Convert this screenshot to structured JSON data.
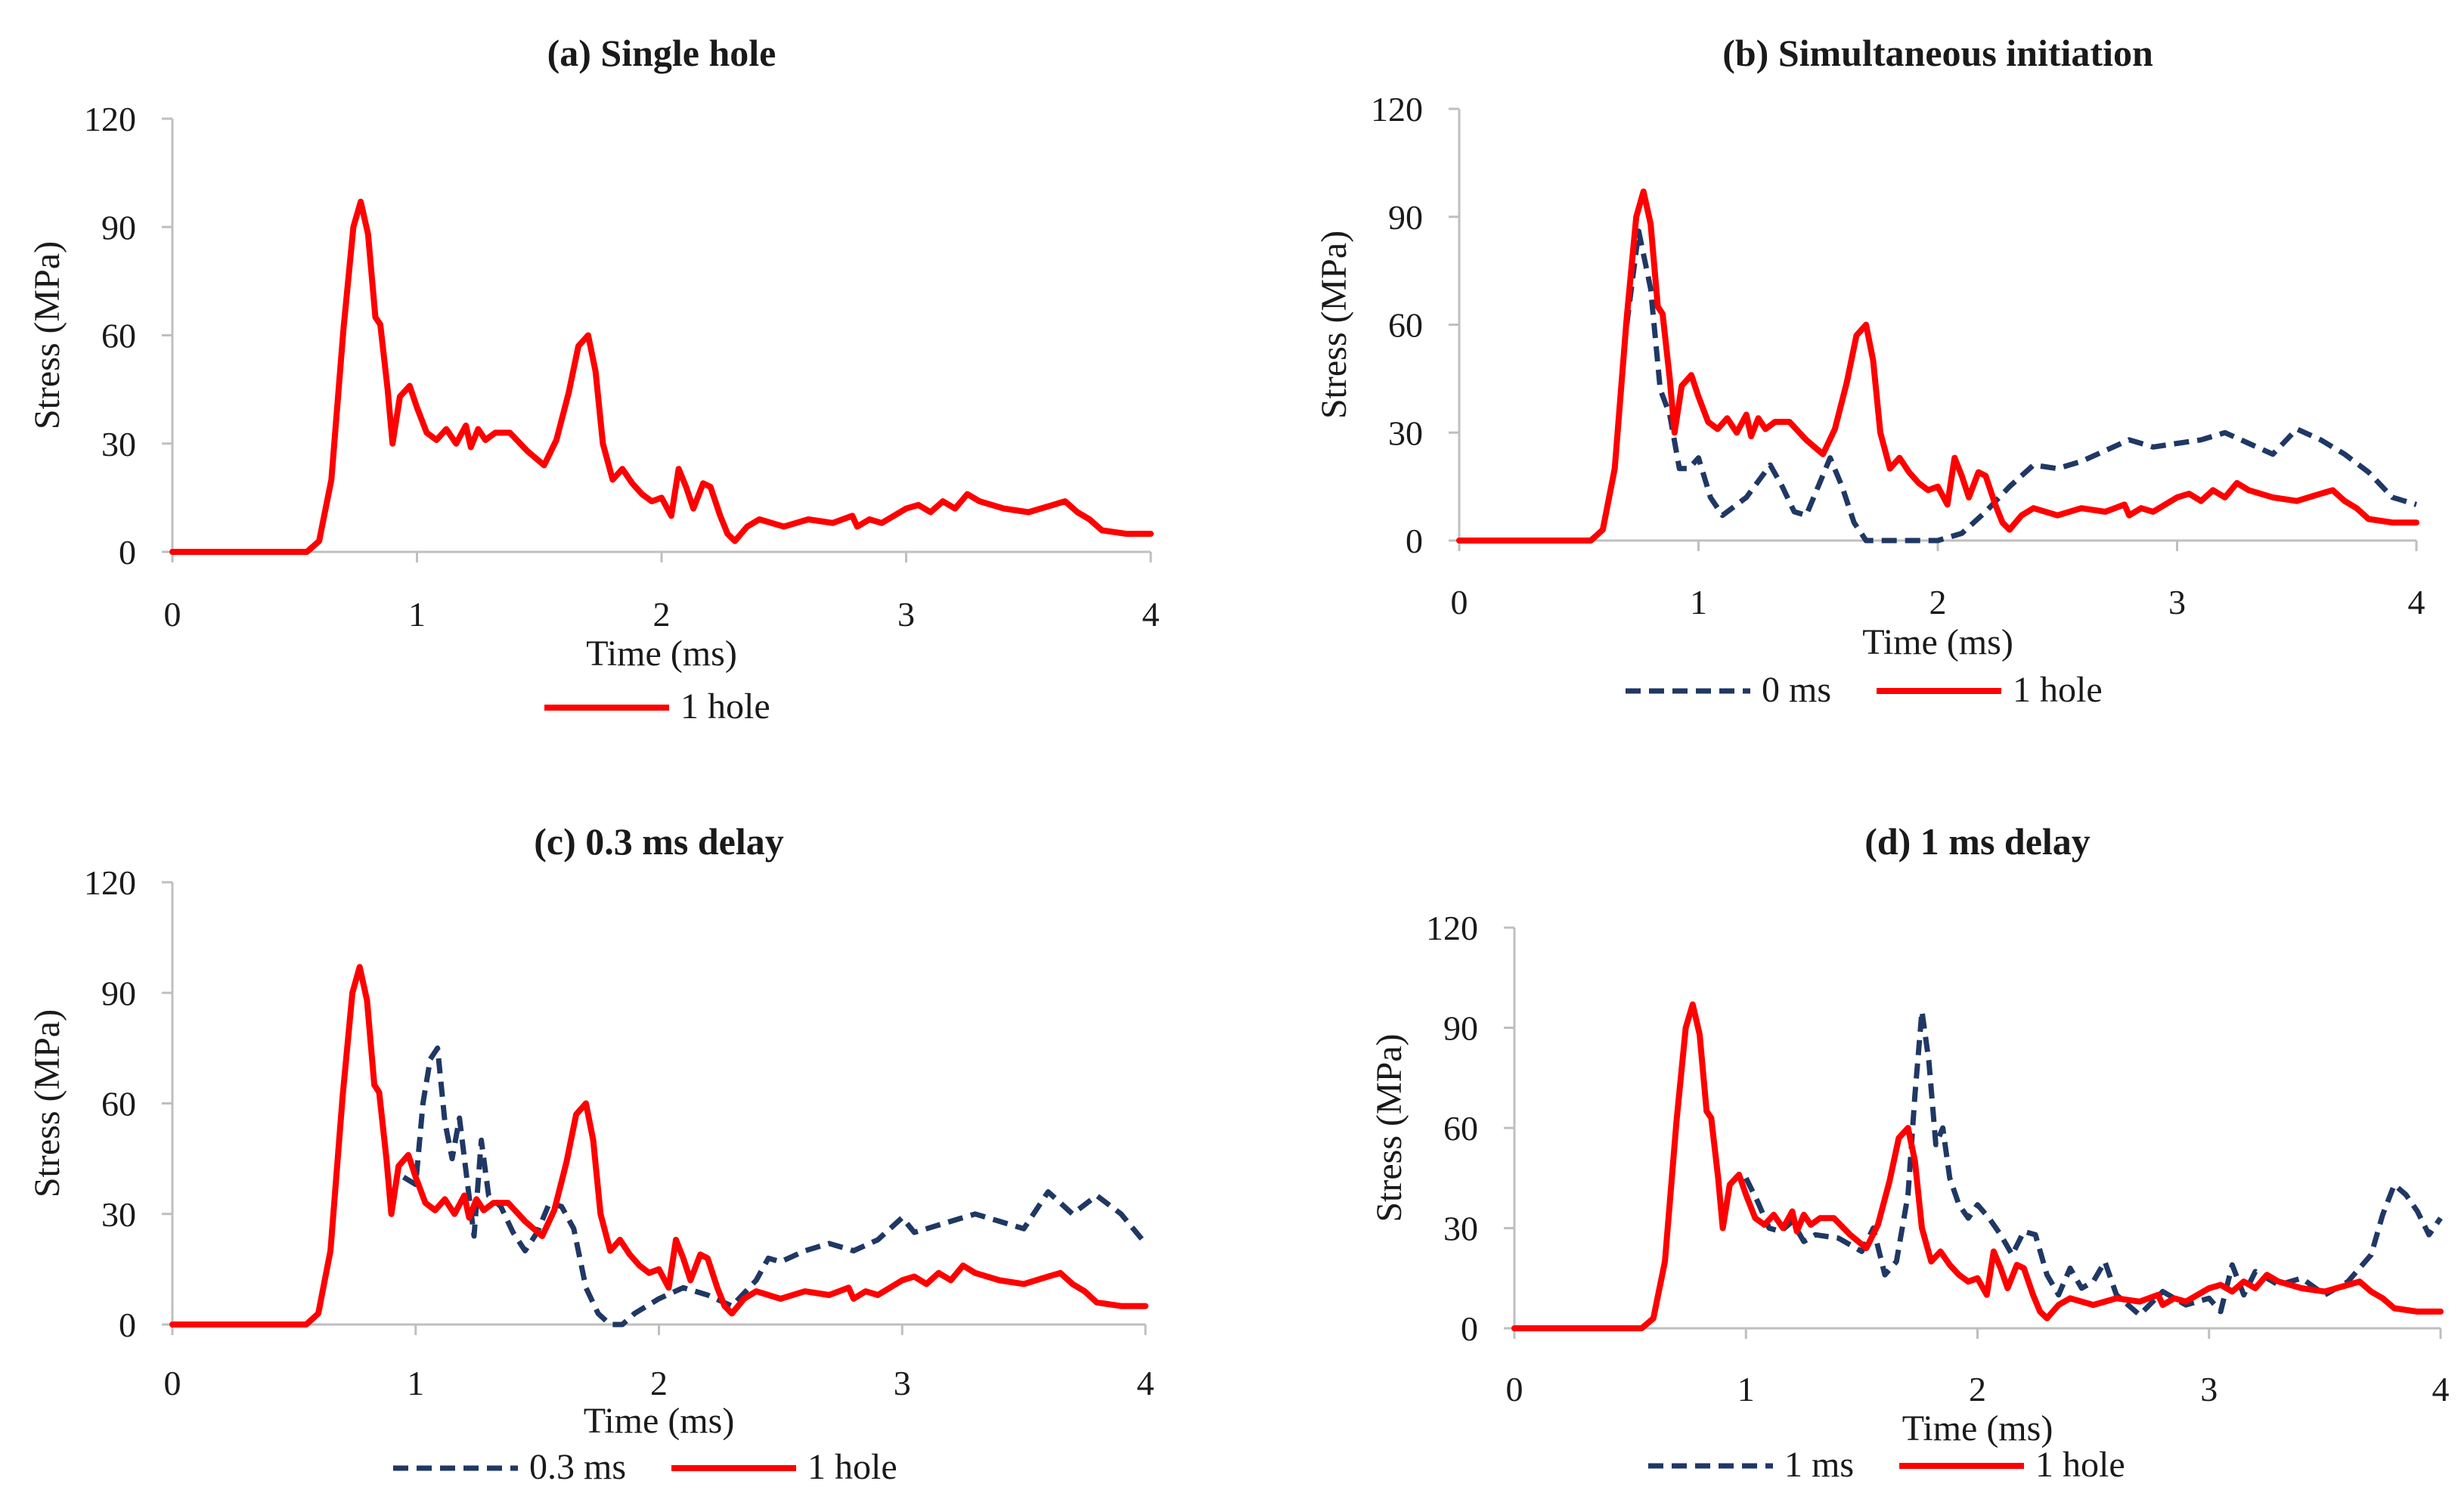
{
  "series_styles": {
    "one_hole": {
      "color": "#ff0000",
      "dash": "solid"
    },
    "delay": {
      "color": "#1f3864",
      "dash": "dashed"
    }
  },
  "chart_data": [
    {
      "type": "line",
      "panel_label": "(a)",
      "title": "Single hole",
      "xlabel": "Time (ms)",
      "ylabel": "Stress (MPa)",
      "xlim": [
        0,
        4
      ],
      "ylim": [
        0,
        120
      ],
      "xticks": [
        0,
        1,
        2,
        3,
        4
      ],
      "yticks": [
        0,
        30,
        60,
        90,
        120
      ],
      "series": [
        {
          "name": "1 hole",
          "style": "one_hole",
          "x": [
            0,
            0.55,
            0.6,
            0.65,
            0.7,
            0.74,
            0.77,
            0.8,
            0.83,
            0.85,
            0.88,
            0.9,
            0.93,
            0.97,
            1.0,
            1.04,
            1.08,
            1.12,
            1.16,
            1.2,
            1.22,
            1.25,
            1.28,
            1.32,
            1.38,
            1.45,
            1.52,
            1.57,
            1.62,
            1.66,
            1.7,
            1.73,
            1.76,
            1.8,
            1.84,
            1.88,
            1.92,
            1.96,
            2.0,
            2.04,
            2.07,
            2.1,
            2.13,
            2.17,
            2.2,
            2.24,
            2.27,
            2.3,
            2.35,
            2.4,
            2.5,
            2.6,
            2.7,
            2.78,
            2.8,
            2.85,
            2.9,
            3.0,
            3.05,
            3.1,
            3.15,
            3.2,
            3.25,
            3.3,
            3.4,
            3.5,
            3.6,
            3.65,
            3.7,
            3.75,
            3.8,
            3.9,
            4.0
          ],
          "y": [
            0,
            0,
            3,
            20,
            62,
            90,
            97,
            88,
            65,
            63,
            45,
            30,
            43,
            46,
            40,
            33,
            31,
            34,
            30,
            35,
            29,
            34,
            31,
            33,
            33,
            28,
            24,
            31,
            44,
            57,
            60,
            50,
            30,
            20,
            23,
            19,
            16,
            14,
            15,
            10,
            23,
            18,
            12,
            19,
            18,
            10,
            5,
            3,
            7,
            9,
            7,
            9,
            8,
            10,
            7,
            9,
            8,
            12,
            13,
            11,
            14,
            12,
            16,
            14,
            12,
            11,
            13,
            14,
            11,
            9,
            6,
            5,
            5
          ]
        }
      ]
    },
    {
      "type": "line",
      "panel_label": "(b)",
      "title": "Simultaneous initiation",
      "xlabel": "Time (ms)",
      "ylabel": "Stress (MPa)",
      "xlim": [
        0,
        4
      ],
      "ylim": [
        0,
        120
      ],
      "xticks": [
        0,
        1,
        2,
        3,
        4
      ],
      "yticks": [
        0,
        30,
        60,
        90,
        120
      ],
      "series": [
        {
          "name": "0 ms",
          "style": "delay",
          "x": [
            0.7,
            0.75,
            0.8,
            0.84,
            0.88,
            0.92,
            0.96,
            1.0,
            1.05,
            1.1,
            1.2,
            1.3,
            1.35,
            1.4,
            1.45,
            1.5,
            1.55,
            1.6,
            1.65,
            1.7,
            1.8,
            1.9,
            2.0,
            2.1,
            2.2,
            2.3,
            2.4,
            2.5,
            2.6,
            2.8,
            2.9,
            3.0,
            3.1,
            3.2,
            3.3,
            3.4,
            3.5,
            3.6,
            3.7,
            3.8,
            3.9,
            4.0
          ],
          "y": [
            60,
            86,
            70,
            42,
            35,
            20,
            20,
            23,
            12,
            7,
            12,
            21,
            15,
            8,
            7,
            15,
            23,
            15,
            5,
            0,
            0,
            0,
            0,
            2,
            8,
            15,
            21,
            20,
            22,
            28,
            26,
            27,
            28,
            30,
            27,
            24,
            31,
            28,
            24,
            19,
            12,
            10
          ]
        },
        {
          "name": "1 hole",
          "style": "one_hole",
          "x": [
            0,
            0.55,
            0.6,
            0.65,
            0.7,
            0.74,
            0.77,
            0.8,
            0.83,
            0.85,
            0.88,
            0.9,
            0.93,
            0.97,
            1.0,
            1.04,
            1.08,
            1.12,
            1.16,
            1.2,
            1.22,
            1.25,
            1.28,
            1.32,
            1.38,
            1.45,
            1.52,
            1.57,
            1.62,
            1.66,
            1.7,
            1.73,
            1.76,
            1.8,
            1.84,
            1.88,
            1.92,
            1.96,
            2.0,
            2.04,
            2.07,
            2.1,
            2.13,
            2.17,
            2.2,
            2.24,
            2.27,
            2.3,
            2.35,
            2.4,
            2.5,
            2.6,
            2.7,
            2.78,
            2.8,
            2.85,
            2.9,
            3.0,
            3.05,
            3.1,
            3.15,
            3.2,
            3.25,
            3.3,
            3.4,
            3.5,
            3.6,
            3.65,
            3.7,
            3.75,
            3.8,
            3.9,
            4.0
          ],
          "y": [
            0,
            0,
            3,
            20,
            62,
            90,
            97,
            88,
            65,
            63,
            45,
            30,
            43,
            46,
            40,
            33,
            31,
            34,
            30,
            35,
            29,
            34,
            31,
            33,
            33,
            28,
            24,
            31,
            44,
            57,
            60,
            50,
            30,
            20,
            23,
            19,
            16,
            14,
            15,
            10,
            23,
            18,
            12,
            19,
            18,
            10,
            5,
            3,
            7,
            9,
            7,
            9,
            8,
            10,
            7,
            9,
            8,
            12,
            13,
            11,
            14,
            12,
            16,
            14,
            12,
            11,
            13,
            14,
            11,
            9,
            6,
            5,
            5
          ]
        }
      ]
    },
    {
      "type": "line",
      "panel_label": "(c)",
      "title": "0.3 ms delay",
      "xlabel": "Time (ms)",
      "ylabel": "Stress (MPa)",
      "xlim": [
        0,
        4
      ],
      "ylim": [
        0,
        120
      ],
      "xticks": [
        0,
        1,
        2,
        3,
        4
      ],
      "yticks": [
        0,
        30,
        60,
        90,
        120
      ],
      "series": [
        {
          "name": "0.3 ms",
          "style": "delay",
          "x": [
            0.95,
            1.0,
            1.03,
            1.06,
            1.09,
            1.12,
            1.15,
            1.18,
            1.21,
            1.24,
            1.27,
            1.3,
            1.35,
            1.4,
            1.45,
            1.5,
            1.55,
            1.6,
            1.65,
            1.7,
            1.75,
            1.8,
            1.85,
            1.9,
            2.0,
            2.1,
            2.2,
            2.3,
            2.4,
            2.45,
            2.5,
            2.6,
            2.7,
            2.8,
            2.9,
            3.0,
            3.05,
            3.1,
            3.2,
            3.3,
            3.4,
            3.5,
            3.6,
            3.65,
            3.7,
            3.8,
            3.9,
            4.0
          ],
          "y": [
            40,
            38,
            60,
            72,
            75,
            55,
            45,
            56,
            40,
            24,
            50,
            35,
            32,
            25,
            20,
            25,
            33,
            32,
            26,
            10,
            3,
            0,
            0,
            3,
            7,
            10,
            8,
            5,
            12,
            18,
            17,
            20,
            22,
            20,
            23,
            29,
            25,
            26,
            28,
            30,
            28,
            26,
            36,
            33,
            30,
            35,
            30,
            22
          ]
        },
        {
          "name": "1 hole",
          "style": "one_hole",
          "x": [
            0,
            0.55,
            0.6,
            0.65,
            0.7,
            0.74,
            0.77,
            0.8,
            0.83,
            0.85,
            0.88,
            0.9,
            0.93,
            0.97,
            1.0,
            1.04,
            1.08,
            1.12,
            1.16,
            1.2,
            1.22,
            1.25,
            1.28,
            1.32,
            1.38,
            1.45,
            1.52,
            1.57,
            1.62,
            1.66,
            1.7,
            1.73,
            1.76,
            1.8,
            1.84,
            1.88,
            1.92,
            1.96,
            2.0,
            2.04,
            2.07,
            2.1,
            2.13,
            2.17,
            2.2,
            2.24,
            2.27,
            2.3,
            2.35,
            2.4,
            2.5,
            2.6,
            2.7,
            2.78,
            2.8,
            2.85,
            2.9,
            3.0,
            3.05,
            3.1,
            3.15,
            3.2,
            3.25,
            3.3,
            3.4,
            3.5,
            3.6,
            3.65,
            3.7,
            3.75,
            3.8,
            3.9,
            4.0
          ],
          "y": [
            0,
            0,
            3,
            20,
            62,
            90,
            97,
            88,
            65,
            63,
            45,
            30,
            43,
            46,
            40,
            33,
            31,
            34,
            30,
            35,
            29,
            34,
            31,
            33,
            33,
            28,
            24,
            31,
            44,
            57,
            60,
            50,
            30,
            20,
            23,
            19,
            16,
            14,
            15,
            10,
            23,
            18,
            12,
            19,
            18,
            10,
            5,
            3,
            7,
            9,
            7,
            9,
            8,
            10,
            7,
            9,
            8,
            12,
            13,
            11,
            14,
            12,
            16,
            14,
            12,
            11,
            13,
            14,
            11,
            9,
            6,
            5,
            5
          ]
        }
      ]
    },
    {
      "type": "line",
      "panel_label": "(d)",
      "title": "1 ms delay",
      "xlabel": "Time (ms)",
      "ylabel": "Stress (MPa)",
      "xlim": [
        0,
        4
      ],
      "ylim": [
        0,
        120
      ],
      "xticks": [
        0,
        1,
        2,
        3,
        4
      ],
      "yticks": [
        0,
        30,
        60,
        90,
        120
      ],
      "series": [
        {
          "name": "1 ms",
          "style": "delay",
          "x": [
            1.0,
            1.05,
            1.1,
            1.15,
            1.2,
            1.25,
            1.3,
            1.4,
            1.5,
            1.55,
            1.6,
            1.65,
            1.7,
            1.73,
            1.76,
            1.79,
            1.82,
            1.85,
            1.88,
            1.92,
            1.96,
            2.0,
            2.05,
            2.1,
            2.15,
            2.2,
            2.25,
            2.3,
            2.35,
            2.4,
            2.45,
            2.5,
            2.55,
            2.6,
            2.7,
            2.8,
            2.9,
            3.0,
            3.05,
            3.1,
            3.15,
            3.2,
            3.3,
            3.4,
            3.5,
            3.6,
            3.65,
            3.7,
            3.75,
            3.8,
            3.85,
            3.9,
            3.95,
            4.0
          ],
          "y": [
            45,
            38,
            30,
            29,
            32,
            26,
            28,
            27,
            23,
            30,
            16,
            20,
            40,
            70,
            95,
            80,
            55,
            60,
            45,
            37,
            33,
            37,
            33,
            28,
            22,
            29,
            28,
            16,
            10,
            18,
            12,
            14,
            20,
            10,
            4,
            11,
            7,
            9,
            5,
            19,
            10,
            17,
            13,
            15,
            10,
            14,
            18,
            22,
            34,
            43,
            40,
            35,
            28,
            33
          ]
        },
        {
          "name": "1 hole",
          "style": "one_hole",
          "x": [
            0,
            0.55,
            0.6,
            0.65,
            0.7,
            0.74,
            0.77,
            0.8,
            0.83,
            0.85,
            0.88,
            0.9,
            0.93,
            0.97,
            1.0,
            1.04,
            1.08,
            1.12,
            1.16,
            1.2,
            1.22,
            1.25,
            1.28,
            1.32,
            1.38,
            1.45,
            1.52,
            1.57,
            1.62,
            1.66,
            1.7,
            1.73,
            1.76,
            1.8,
            1.84,
            1.88,
            1.92,
            1.96,
            2.0,
            2.04,
            2.07,
            2.1,
            2.13,
            2.17,
            2.2,
            2.24,
            2.27,
            2.3,
            2.35,
            2.4,
            2.5,
            2.6,
            2.7,
            2.78,
            2.8,
            2.85,
            2.9,
            3.0,
            3.05,
            3.1,
            3.15,
            3.2,
            3.25,
            3.3,
            3.4,
            3.5,
            3.6,
            3.65,
            3.7,
            3.75,
            3.8,
            3.9,
            4.0
          ],
          "y": [
            0,
            0,
            3,
            20,
            62,
            90,
            97,
            88,
            65,
            63,
            45,
            30,
            43,
            46,
            40,
            33,
            31,
            34,
            30,
            35,
            29,
            34,
            31,
            33,
            33,
            28,
            24,
            31,
            44,
            57,
            60,
            50,
            30,
            20,
            23,
            19,
            16,
            14,
            15,
            10,
            23,
            18,
            12,
            19,
            18,
            10,
            5,
            3,
            7,
            9,
            7,
            9,
            8,
            10,
            7,
            9,
            8,
            12,
            13,
            11,
            14,
            12,
            16,
            14,
            12,
            11,
            13,
            14,
            11,
            9,
            6,
            5,
            5
          ]
        }
      ]
    }
  ]
}
